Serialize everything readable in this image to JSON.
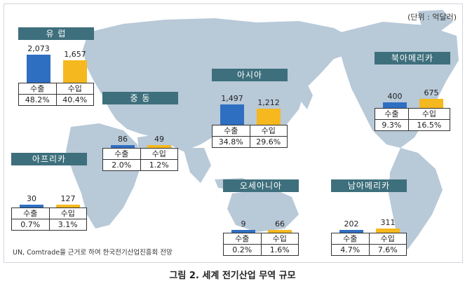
{
  "unit_label": "(단위 : 억달러)",
  "source_note": "UN, Comtrade을 근거로 하여 한국전기산업진흥회 전망",
  "caption": "그림 2. 세계 전기산업 무역 규모",
  "colors": {
    "export": "#2f6fc2",
    "import": "#f5b81e",
    "title_bg": "#3e6f7c",
    "map": "#b8c9d8"
  },
  "chart_data": {
    "type": "bar",
    "unit": "억달러",
    "series_labels": [
      "수출",
      "수입"
    ],
    "regions": [
      {
        "name": "유 럽",
        "values": [
          2073,
          1657
        ],
        "shares": [
          "48.2%",
          "40.4%"
        ]
      },
      {
        "name": "중 동",
        "values": [
          86,
          49
        ],
        "shares": [
          "2.0%",
          "1.2%"
        ]
      },
      {
        "name": "아프리카",
        "values": [
          30,
          127
        ],
        "shares": [
          "0.7%",
          "3.1%"
        ]
      },
      {
        "name": "아시아",
        "values": [
          1497,
          1212
        ],
        "shares": [
          "34.8%",
          "29.6%"
        ]
      },
      {
        "name": "북아메리카",
        "values": [
          400,
          675
        ],
        "shares": [
          "9.3%",
          "16.5%"
        ]
      },
      {
        "name": "오세아니아",
        "values": [
          9,
          66
        ],
        "shares": [
          "0.2%",
          "1.6%"
        ]
      },
      {
        "name": "남아메리카",
        "values": [
          202,
          311
        ],
        "shares": [
          "4.7%",
          "7.6%"
        ]
      }
    ]
  }
}
